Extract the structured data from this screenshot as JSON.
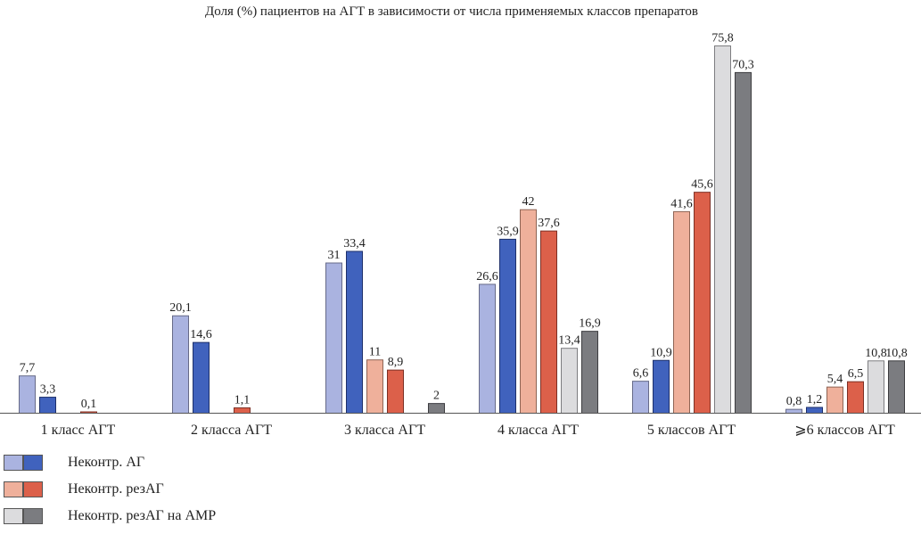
{
  "chart_data": {
    "type": "bar",
    "title": "Доля (%) пациентов на АГТ в зависимости от числа применяемых классов препаратов",
    "xlabel": "",
    "ylabel": "",
    "ylim": [
      0,
      76
    ],
    "grid": false,
    "legend_position": "bottom-left",
    "categories": [
      "1 класс АГТ",
      "2 класса АГТ",
      "3 класса АГТ",
      "4 класса АГТ",
      "5 классов АГТ",
      "⩾6 классов АГТ"
    ],
    "series": [
      {
        "name": "Неконтр. АГ (светлый)",
        "color": "#aab3e0",
        "values": [
          7.7,
          20.1,
          31,
          26.6,
          6.6,
          0.8
        ]
      },
      {
        "name": "Неконтр. АГ (тёмный)",
        "color": "#4062bd",
        "values": [
          3.3,
          14.6,
          33.4,
          35.9,
          10.9,
          1.2
        ]
      },
      {
        "name": "Неконтр. резАГ (светлый)",
        "color": "#efb09b",
        "values": [
          null,
          null,
          11,
          42,
          41.6,
          5.4
        ]
      },
      {
        "name": "Неконтр. резАГ (тёмный)",
        "color": "#dc604a",
        "values": [
          0.1,
          1.1,
          8.9,
          37.6,
          45.6,
          6.5
        ]
      },
      {
        "name": "Неконтр. резАГ на АМР (светлый)",
        "color": "#dcdcde",
        "values": [
          null,
          null,
          null,
          13.4,
          75.8,
          10.8
        ]
      },
      {
        "name": "Неконтр. резАГ на АМР (тёмный)",
        "color": "#7b7c80",
        "values": [
          null,
          null,
          2,
          16.9,
          70.3,
          10.8
        ]
      }
    ],
    "value_labels": [
      [
        "7,7",
        "20,1",
        "31",
        "26,6",
        "6,6",
        "0,8"
      ],
      [
        "3,3",
        "14,6",
        "33,4",
        "35,9",
        "10,9",
        "1,2"
      ],
      [
        null,
        null,
        "11",
        "42",
        "41,6",
        "5,4"
      ],
      [
        "0,1",
        "1,1",
        "8,9",
        "37,6",
        "45,6",
        "6,5"
      ],
      [
        null,
        null,
        null,
        "13,4",
        "75,8",
        "10,8"
      ],
      [
        null,
        null,
        "2",
        "16,9",
        "70,3",
        "10,8"
      ]
    ],
    "legend": [
      {
        "label": "Неконтр. АГ",
        "colors": [
          "#aab3e0",
          "#4062bd"
        ]
      },
      {
        "label": "Неконтр. резАГ",
        "colors": [
          "#efb09b",
          "#dc604a"
        ]
      },
      {
        "label": "Неконтр. резАГ на АМР",
        "colors": [
          "#dcdcde",
          "#7b7c80"
        ]
      }
    ]
  }
}
